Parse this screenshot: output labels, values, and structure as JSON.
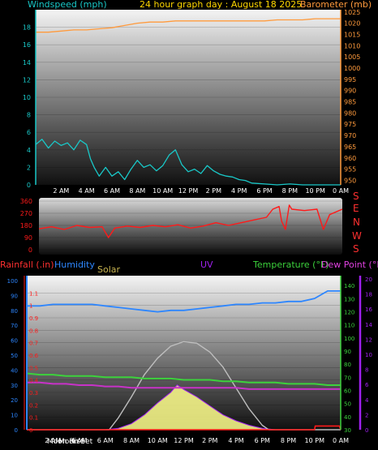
{
  "header": {
    "title": "24 hour graph day : August 18 2025",
    "left_label": "Windspeed (mph)",
    "right_label": "Barometer (mb)"
  },
  "legend": {
    "rainfall": "Rainfall (.in)",
    "humidity": "Humidity",
    "solar": "Solar",
    "uv": "UV",
    "temperature": "Temperature (°F)",
    "dewpoint": "Dew Point (°F)"
  },
  "compass": [
    "S",
    "E",
    "N",
    "W",
    "S"
  ],
  "time_labels": [
    "2 AM",
    "4 AM",
    "6 AM",
    "8 AM",
    "10 AM",
    "12 PM",
    "2 PM",
    "4 PM",
    "6 PM",
    "8 PM",
    "10 PM",
    "0 AM"
  ],
  "bottom_extra_labels": [
    "Moon Rise",
    "Moon Set"
  ],
  "colors": {
    "windspeed": "#19c8c8",
    "barometer": "#ff9a3c",
    "direction": "#ff1a1a",
    "humidity": "#2d86ff",
    "temperature": "#3cd23c",
    "dewpoint": "#c832c8",
    "solar": "#ffff8c",
    "solar_line": "#bebebe",
    "rain": "#ff1a1a",
    "uv_axis": "#a020f0",
    "title": "#ffd700"
  },
  "chart_data": [
    {
      "type": "line",
      "name": "wind-baro",
      "x_unit": "hours since midnight",
      "wind_ylim": [
        0,
        20
      ],
      "wind_ticks": [
        0,
        2,
        4,
        6,
        8,
        10,
        12,
        14,
        16,
        18
      ],
      "baro_ylim": [
        948,
        1026
      ],
      "baro_ticks": [
        950,
        955,
        960,
        965,
        970,
        975,
        980,
        985,
        990,
        995,
        1000,
        1005,
        1010,
        1015,
        1020,
        1025
      ],
      "windspeed": [
        [
          0,
          4.6
        ],
        [
          0.5,
          5.2
        ],
        [
          1,
          4.2
        ],
        [
          1.5,
          5.0
        ],
        [
          2,
          4.5
        ],
        [
          2.5,
          4.8
        ],
        [
          3,
          4.0
        ],
        [
          3.5,
          5.1
        ],
        [
          4,
          4.6
        ],
        [
          4.3,
          3.0
        ],
        [
          4.6,
          2.0
        ],
        [
          5,
          1.0
        ],
        [
          5.5,
          2.0
        ],
        [
          6,
          1.0
        ],
        [
          6.5,
          1.5
        ],
        [
          7,
          0.6
        ],
        [
          7.5,
          1.8
        ],
        [
          8,
          2.8
        ],
        [
          8.5,
          2.0
        ],
        [
          9,
          2.3
        ],
        [
          9.5,
          1.6
        ],
        [
          10,
          2.2
        ],
        [
          10.5,
          3.4
        ],
        [
          11,
          4.0
        ],
        [
          11.5,
          2.3
        ],
        [
          12,
          1.5
        ],
        [
          12.5,
          1.8
        ],
        [
          13,
          1.3
        ],
        [
          13.5,
          2.2
        ],
        [
          14,
          1.6
        ],
        [
          14.5,
          1.2
        ],
        [
          15,
          1.0
        ],
        [
          15.5,
          0.9
        ],
        [
          16,
          0.6
        ],
        [
          16.5,
          0.5
        ],
        [
          17,
          0.2
        ],
        [
          18,
          0.1
        ],
        [
          19,
          0
        ],
        [
          20,
          0.1
        ],
        [
          21,
          0
        ],
        [
          22,
          0
        ],
        [
          24,
          0
        ]
      ],
      "barometer": [
        [
          0,
          1016
        ],
        [
          1,
          1016
        ],
        [
          2,
          1016.5
        ],
        [
          3,
          1017
        ],
        [
          4,
          1017
        ],
        [
          5,
          1017.5
        ],
        [
          6,
          1018
        ],
        [
          7,
          1019
        ],
        [
          8,
          1020
        ],
        [
          9,
          1020.5
        ],
        [
          10,
          1020.5
        ],
        [
          11,
          1021
        ],
        [
          12,
          1021
        ],
        [
          13,
          1021
        ],
        [
          14,
          1021
        ],
        [
          15,
          1021
        ],
        [
          16,
          1021
        ],
        [
          17,
          1021
        ],
        [
          18,
          1021
        ],
        [
          19,
          1021.5
        ],
        [
          20,
          1021.5
        ],
        [
          21,
          1021.5
        ],
        [
          22,
          1022
        ],
        [
          23,
          1022
        ],
        [
          24,
          1022
        ]
      ]
    },
    {
      "type": "line",
      "name": "wind-direction",
      "ylim": [
        0,
        360
      ],
      "ticks": [
        0,
        90,
        180,
        270,
        360
      ],
      "direction": [
        [
          0,
          155
        ],
        [
          1,
          170
        ],
        [
          2,
          150
        ],
        [
          3,
          180
        ],
        [
          4,
          165
        ],
        [
          5,
          170
        ],
        [
          5.5,
          90
        ],
        [
          6,
          160
        ],
        [
          7,
          175
        ],
        [
          8,
          165
        ],
        [
          9,
          180
        ],
        [
          10,
          170
        ],
        [
          11,
          185
        ],
        [
          12,
          160
        ],
        [
          13,
          175
        ],
        [
          14,
          200
        ],
        [
          15,
          180
        ],
        [
          16,
          200
        ],
        [
          17,
          220
        ],
        [
          18,
          240
        ],
        [
          18.5,
          300
        ],
        [
          19,
          320
        ],
        [
          19.2,
          210
        ],
        [
          19.5,
          150
        ],
        [
          19.8,
          330
        ],
        [
          20,
          300
        ],
        [
          21,
          290
        ],
        [
          22,
          300
        ],
        [
          22.5,
          150
        ],
        [
          23,
          260
        ],
        [
          24,
          300
        ]
      ]
    },
    {
      "type": "line",
      "name": "weather",
      "left_axis": {
        "label": "Rainfall (.in)",
        "ylim": [
          0,
          1.2
        ],
        "ticks": [
          0,
          0.1,
          0.2,
          0.3,
          0.4,
          0.5,
          0.6,
          0.7,
          0.8,
          0.9,
          1,
          1.1
        ]
      },
      "humidity_axis": {
        "label": "Humidity",
        "ylim": [
          0,
          100
        ],
        "ticks": [
          0,
          10,
          20,
          30,
          40,
          50,
          60,
          70,
          80,
          90,
          100
        ]
      },
      "temp_axis": {
        "label": "Temperature (°F)",
        "ylim": [
          30,
          145
        ],
        "ticks": [
          30,
          40,
          50,
          60,
          70,
          80,
          90,
          100,
          110,
          120,
          130,
          140
        ]
      },
      "uv_axis": {
        "label": "UV",
        "ylim": [
          0,
          20
        ],
        "ticks": [
          0,
          2,
          4,
          6,
          8,
          10,
          12,
          14,
          16,
          18,
          20
        ]
      },
      "humidity": [
        [
          0,
          83
        ],
        [
          1,
          83
        ],
        [
          2,
          84
        ],
        [
          3,
          84
        ],
        [
          4,
          84
        ],
        [
          5,
          84
        ],
        [
          6,
          83
        ],
        [
          7,
          82
        ],
        [
          8,
          81
        ],
        [
          9,
          80
        ],
        [
          10,
          79
        ],
        [
          11,
          80
        ],
        [
          12,
          80
        ],
        [
          13,
          81
        ],
        [
          14,
          82
        ],
        [
          15,
          83
        ],
        [
          16,
          84
        ],
        [
          17,
          84
        ],
        [
          18,
          85
        ],
        [
          19,
          85
        ],
        [
          20,
          86
        ],
        [
          21,
          86
        ],
        [
          22,
          88
        ],
        [
          23,
          93
        ],
        [
          24,
          93
        ]
      ],
      "temperature": [
        [
          0,
          73
        ],
        [
          1,
          72
        ],
        [
          2,
          72
        ],
        [
          3,
          71
        ],
        [
          4,
          71
        ],
        [
          5,
          71
        ],
        [
          6,
          70
        ],
        [
          7,
          70
        ],
        [
          8,
          70
        ],
        [
          9,
          69
        ],
        [
          10,
          69
        ],
        [
          11,
          69
        ],
        [
          12,
          68
        ],
        [
          13,
          68
        ],
        [
          14,
          68
        ],
        [
          15,
          67
        ],
        [
          16,
          67
        ],
        [
          17,
          66
        ],
        [
          18,
          66
        ],
        [
          19,
          66
        ],
        [
          20,
          65
        ],
        [
          21,
          65
        ],
        [
          22,
          65
        ],
        [
          23,
          64
        ],
        [
          24,
          64
        ]
      ],
      "dewpoint": [
        [
          0,
          66
        ],
        [
          1,
          66
        ],
        [
          2,
          65
        ],
        [
          3,
          65
        ],
        [
          4,
          64
        ],
        [
          5,
          64
        ],
        [
          6,
          63
        ],
        [
          7,
          63
        ],
        [
          8,
          62
        ],
        [
          9,
          62
        ],
        [
          10,
          62
        ],
        [
          11,
          62
        ],
        [
          12,
          62
        ],
        [
          13,
          62
        ],
        [
          14,
          62
        ],
        [
          15,
          62
        ],
        [
          16,
          62
        ],
        [
          17,
          61
        ],
        [
          18,
          61
        ],
        [
          19,
          61
        ],
        [
          20,
          61
        ],
        [
          21,
          61
        ],
        [
          22,
          61
        ],
        [
          23,
          61
        ],
        [
          24,
          61
        ]
      ],
      "solar_radiation": [
        [
          0,
          0
        ],
        [
          6,
          0
        ],
        [
          7,
          1
        ],
        [
          8,
          4
        ],
        [
          9,
          10
        ],
        [
          10,
          18
        ],
        [
          11,
          25
        ],
        [
          11.5,
          30
        ],
        [
          12,
          27
        ],
        [
          13,
          22
        ],
        [
          14,
          16
        ],
        [
          15,
          10
        ],
        [
          16,
          6
        ],
        [
          17,
          3
        ],
        [
          18,
          1
        ],
        [
          19,
          0
        ],
        [
          24,
          0
        ]
      ],
      "solar_max": [
        [
          0,
          0
        ],
        [
          6.3,
          0
        ],
        [
          7,
          8
        ],
        [
          8,
          22
        ],
        [
          9,
          37
        ],
        [
          10,
          48
        ],
        [
          11,
          56
        ],
        [
          12,
          59
        ],
        [
          13,
          58
        ],
        [
          14,
          52
        ],
        [
          15,
          42
        ],
        [
          16,
          28
        ],
        [
          17,
          14
        ],
        [
          18,
          3
        ],
        [
          18.5,
          0
        ],
        [
          24,
          0
        ]
      ],
      "rainfall": [
        [
          0,
          0
        ],
        [
          22,
          0
        ],
        [
          22.05,
          0.03
        ],
        [
          23.9,
          0.03
        ],
        [
          24,
          0
        ]
      ]
    }
  ]
}
